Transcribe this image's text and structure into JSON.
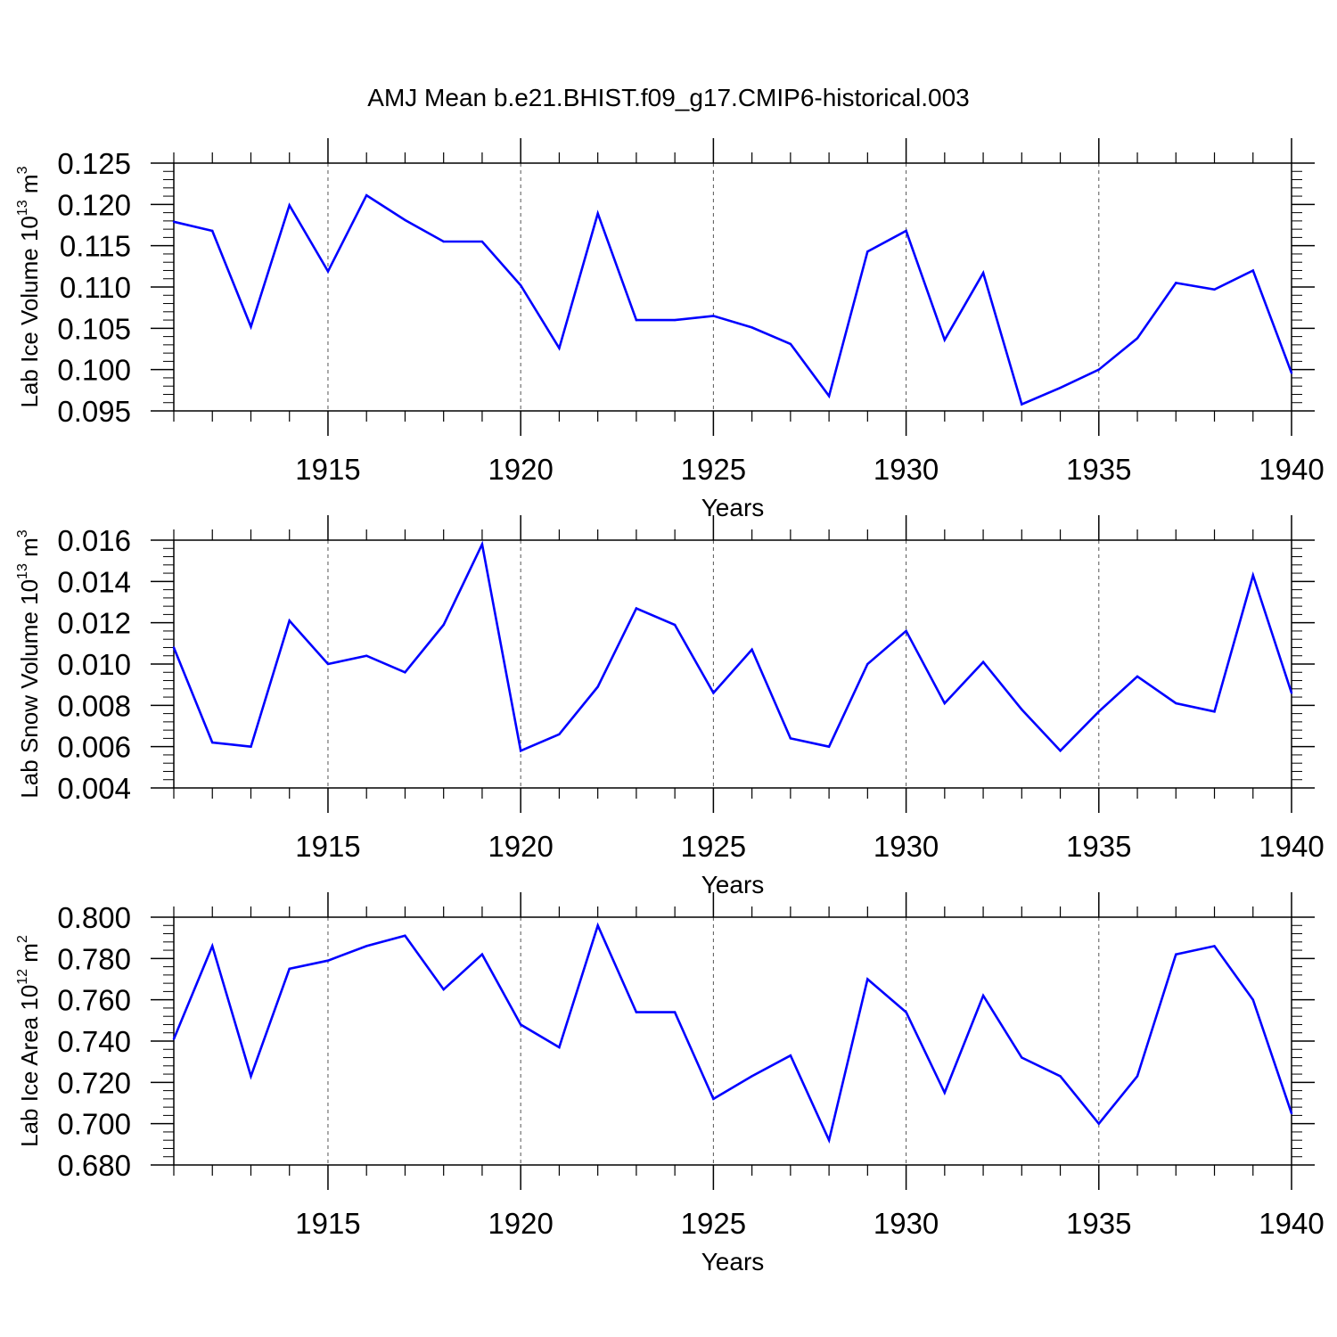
{
  "figure": {
    "title": "AMJ Mean b.e21.BHIST.f09_g17.CMIP6-historical.003"
  },
  "colors": {
    "line": "#0000ff",
    "axis": "#000000",
    "grid": "#555555"
  },
  "chart_data": [
    {
      "type": "line",
      "title": "",
      "xlabel": "Years",
      "ylabel": "Lab Ice Volume 10",
      "ylabel_sup": "13",
      "ylabel_unit": " m",
      "ylabel_unit_sup": "3",
      "xlim": [
        1911,
        1940
      ],
      "ylim": [
        0.095,
        0.125
      ],
      "xticks": [
        1915,
        1920,
        1925,
        1930,
        1935,
        1940
      ],
      "xtick_labels": [
        "1915",
        "1920",
        "1925",
        "1930",
        "1935",
        "1940"
      ],
      "yticks": [
        0.095,
        0.1,
        0.105,
        0.11,
        0.115,
        0.12,
        0.125
      ],
      "ytick_labels": [
        "0.095",
        "0.100",
        "0.105",
        "0.110",
        "0.115",
        "0.120",
        "0.125"
      ],
      "grid": "dashed vertical at major x ticks",
      "x": [
        1911,
        1912,
        1913,
        1914,
        1915,
        1916,
        1917,
        1918,
        1919,
        1920,
        1921,
        1922,
        1923,
        1924,
        1925,
        1926,
        1927,
        1928,
        1929,
        1930,
        1931,
        1932,
        1933,
        1934,
        1935,
        1936,
        1937,
        1938,
        1939,
        1940
      ],
      "series": [
        {
          "values": [
            0.1179,
            0.1168,
            0.1052,
            0.1199,
            0.1119,
            0.1211,
            0.1181,
            0.1155,
            0.1155,
            0.1102,
            0.1026,
            0.1189,
            0.106,
            0.106,
            0.1065,
            0.1051,
            0.1031,
            0.0968,
            0.1143,
            0.1168,
            0.1036,
            0.1117,
            0.0958,
            0.0978,
            0.1,
            0.1038,
            0.1105,
            0.1097,
            0.112,
            0.0996
          ]
        }
      ]
    },
    {
      "type": "line",
      "title": "",
      "xlabel": "Years",
      "ylabel": "Lab Snow Volume 10",
      "ylabel_sup": "13",
      "ylabel_unit": " m",
      "ylabel_unit_sup": "3",
      "xlim": [
        1911,
        1940
      ],
      "ylim": [
        0.004,
        0.016
      ],
      "xticks": [
        1915,
        1920,
        1925,
        1930,
        1935,
        1940
      ],
      "xtick_labels": [
        "1915",
        "1920",
        "1925",
        "1930",
        "1935",
        "1940"
      ],
      "yticks": [
        0.004,
        0.006,
        0.008,
        0.01,
        0.012,
        0.014,
        0.016
      ],
      "ytick_labels": [
        "0.004",
        "0.006",
        "0.008",
        "0.010",
        "0.012",
        "0.014",
        "0.016"
      ],
      "grid": "dashed vertical at major x ticks",
      "x": [
        1911,
        1912,
        1913,
        1914,
        1915,
        1916,
        1917,
        1918,
        1919,
        1920,
        1921,
        1922,
        1923,
        1924,
        1925,
        1926,
        1927,
        1928,
        1929,
        1930,
        1931,
        1932,
        1933,
        1934,
        1935,
        1936,
        1937,
        1938,
        1939,
        1940
      ],
      "series": [
        {
          "values": [
            0.0108,
            0.0062,
            0.006,
            0.0121,
            0.01,
            0.0104,
            0.0096,
            0.0119,
            0.0158,
            0.0058,
            0.0066,
            0.0089,
            0.0127,
            0.0119,
            0.0086,
            0.0107,
            0.0064,
            0.006,
            0.01,
            0.0116,
            0.0081,
            0.0101,
            0.0078,
            0.0058,
            0.0077,
            0.0094,
            0.0081,
            0.0077,
            0.0143,
            0.0086
          ]
        }
      ]
    },
    {
      "type": "line",
      "title": "",
      "xlabel": "Years",
      "ylabel": "Lab Ice Area 10",
      "ylabel_sup": "12",
      "ylabel_unit": " m",
      "ylabel_unit_sup": "2",
      "xlim": [
        1911,
        1940
      ],
      "ylim": [
        0.68,
        0.8
      ],
      "xticks": [
        1915,
        1920,
        1925,
        1930,
        1935,
        1940
      ],
      "xtick_labels": [
        "1915",
        "1920",
        "1925",
        "1930",
        "1935",
        "1940"
      ],
      "yticks": [
        0.68,
        0.7,
        0.72,
        0.74,
        0.76,
        0.78,
        0.8
      ],
      "ytick_labels": [
        "0.680",
        "0.700",
        "0.720",
        "0.740",
        "0.760",
        "0.780",
        "0.800"
      ],
      "grid": "dashed vertical at major x ticks",
      "x": [
        1911,
        1912,
        1913,
        1914,
        1915,
        1916,
        1917,
        1918,
        1919,
        1920,
        1921,
        1922,
        1923,
        1924,
        1925,
        1926,
        1927,
        1928,
        1929,
        1930,
        1931,
        1932,
        1933,
        1934,
        1935,
        1936,
        1937,
        1938,
        1939,
        1940
      ],
      "series": [
        {
          "values": [
            0.741,
            0.786,
            0.723,
            0.775,
            0.779,
            0.786,
            0.791,
            0.765,
            0.782,
            0.748,
            0.737,
            0.796,
            0.754,
            0.754,
            0.712,
            0.723,
            0.733,
            0.692,
            0.77,
            0.754,
            0.715,
            0.762,
            0.732,
            0.723,
            0.7,
            0.723,
            0.782,
            0.786,
            0.76,
            0.705
          ]
        }
      ]
    }
  ]
}
